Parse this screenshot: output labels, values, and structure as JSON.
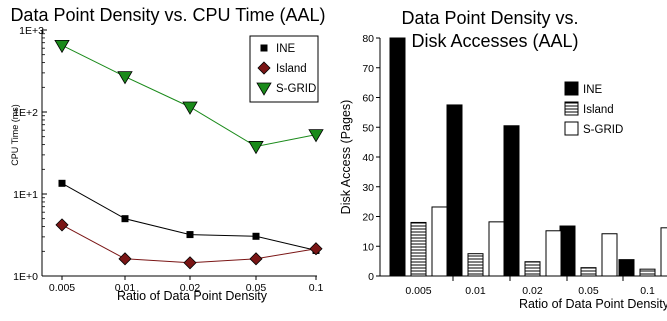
{
  "chart_data": [
    {
      "type": "line",
      "title": "Data Point Density vs. CPU Time (AAL)",
      "xlabel": "Ratio of Data Point Density",
      "ylabel": "CPU Time (ms)",
      "y_scale": "log",
      "ylim": [
        1,
        1000
      ],
      "y_ticks": [
        "1E+0",
        "1E+1",
        "1E+2",
        "1E+3"
      ],
      "categories": [
        "0.005",
        "0.01",
        "0.02",
        "0.05",
        "0.1"
      ],
      "legend_position": "top-right",
      "series": [
        {
          "name": "INE",
          "color": "#000000",
          "line_color": "#000000",
          "marker": "square",
          "values": [
            13.5,
            5.0,
            3.2,
            3.05,
            2.05
          ]
        },
        {
          "name": "Island",
          "color": "#7a1515",
          "line_color": "#7a1515",
          "marker": "diamond",
          "values": [
            4.2,
            1.62,
            1.45,
            1.62,
            2.15
          ]
        },
        {
          "name": "S-GRID",
          "color": "#1a8a1a",
          "line_color": "#1a8a1a",
          "marker": "triangle-down",
          "values": [
            650,
            270,
            115,
            38,
            53
          ]
        }
      ]
    },
    {
      "type": "bar",
      "title": "Data Point Density vs. Disk Accesses (AAL)",
      "title_lines": [
        "Data Point Density vs.",
        "Disk Accesses (AAL)"
      ],
      "xlabel": "Ratio of Data Point Density",
      "ylabel": "Disk Access (Pages)",
      "ylim": [
        0,
        80
      ],
      "y_ticks": [
        0,
        10,
        20,
        30,
        40,
        50,
        60,
        70,
        80
      ],
      "categories": [
        "0.005",
        "0.01",
        "0.02",
        "0.05",
        "0.1"
      ],
      "legend_position": "right",
      "series": [
        {
          "name": "INE",
          "fill": "solid-black",
          "values": [
            80,
            57.5,
            50.5,
            16.8,
            5.5
          ]
        },
        {
          "name": "Island",
          "fill": "horizontal-stripes",
          "values": [
            18,
            7.5,
            4.8,
            2.8,
            2.3
          ]
        },
        {
          "name": "S-GRID",
          "fill": "white",
          "values": [
            23.2,
            18.2,
            15.2,
            14.2,
            16.2
          ]
        }
      ]
    }
  ]
}
